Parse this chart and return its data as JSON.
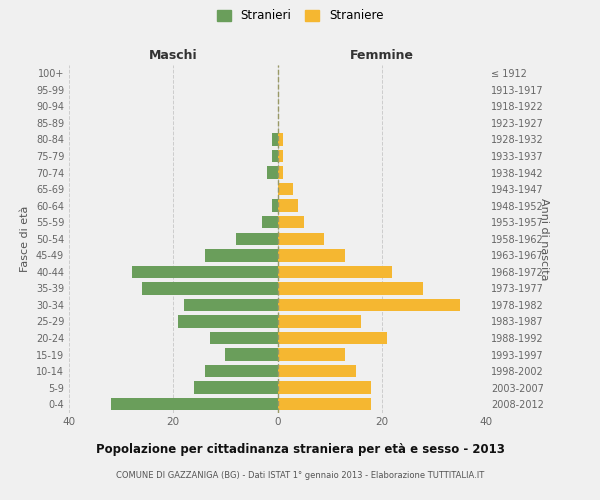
{
  "age_groups": [
    "0-4",
    "5-9",
    "10-14",
    "15-19",
    "20-24",
    "25-29",
    "30-34",
    "35-39",
    "40-44",
    "45-49",
    "50-54",
    "55-59",
    "60-64",
    "65-69",
    "70-74",
    "75-79",
    "80-84",
    "85-89",
    "90-94",
    "95-99",
    "100+"
  ],
  "birth_years": [
    "2008-2012",
    "2003-2007",
    "1998-2002",
    "1993-1997",
    "1988-1992",
    "1983-1987",
    "1978-1982",
    "1973-1977",
    "1968-1972",
    "1963-1967",
    "1958-1962",
    "1953-1957",
    "1948-1952",
    "1943-1947",
    "1938-1942",
    "1933-1937",
    "1928-1932",
    "1923-1927",
    "1918-1922",
    "1913-1917",
    "≤ 1912"
  ],
  "males": [
    32,
    16,
    14,
    10,
    13,
    19,
    18,
    26,
    28,
    14,
    8,
    3,
    1,
    0,
    2,
    1,
    1,
    0,
    0,
    0,
    0
  ],
  "females": [
    18,
    18,
    15,
    13,
    21,
    16,
    35,
    28,
    22,
    13,
    9,
    5,
    4,
    3,
    1,
    1,
    1,
    0,
    0,
    0,
    0
  ],
  "male_color": "#6a9e5b",
  "female_color": "#f5b731",
  "background_color": "#f0f0f0",
  "grid_color": "#cccccc",
  "title": "Popolazione per cittadinanza straniera per età e sesso - 2013",
  "subtitle": "COMUNE DI GAZZANIGA (BG) - Dati ISTAT 1° gennaio 2013 - Elaborazione TUTTITALIA.IT",
  "ylabel_left": "Fasce di età",
  "ylabel_right": "Anni di nascita",
  "xlabel_left": "Maschi",
  "xlabel_right": "Femmine",
  "legend_male": "Stranieri",
  "legend_female": "Straniere",
  "xlim": 40
}
